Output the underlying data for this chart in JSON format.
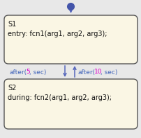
{
  "bg_color": "#e8e8e8",
  "box_fill": "#faf6e4",
  "box_edge": "#555555",
  "arrow_color": "#5566bb",
  "dot_color": "#4455aa",
  "s1_label": "S1",
  "s1_text": "entry: fcn1(arg1, arg2, arg3);",
  "s2_label": "S2",
  "s2_text": "during: fcn2(arg1, arg2, arg3);",
  "trans1_prefix": "after(",
  "trans1_num": "5",
  "trans1_suffix": ", sec)",
  "trans2_prefix": "after(",
  "trans2_num": "10",
  "trans2_suffix": ", sec)",
  "text_color": "#111111",
  "highlight_color": "#dd00cc",
  "arrow_blue": "#4466bb",
  "fig_w": 2.03,
  "fig_h": 1.99,
  "dpi": 100
}
